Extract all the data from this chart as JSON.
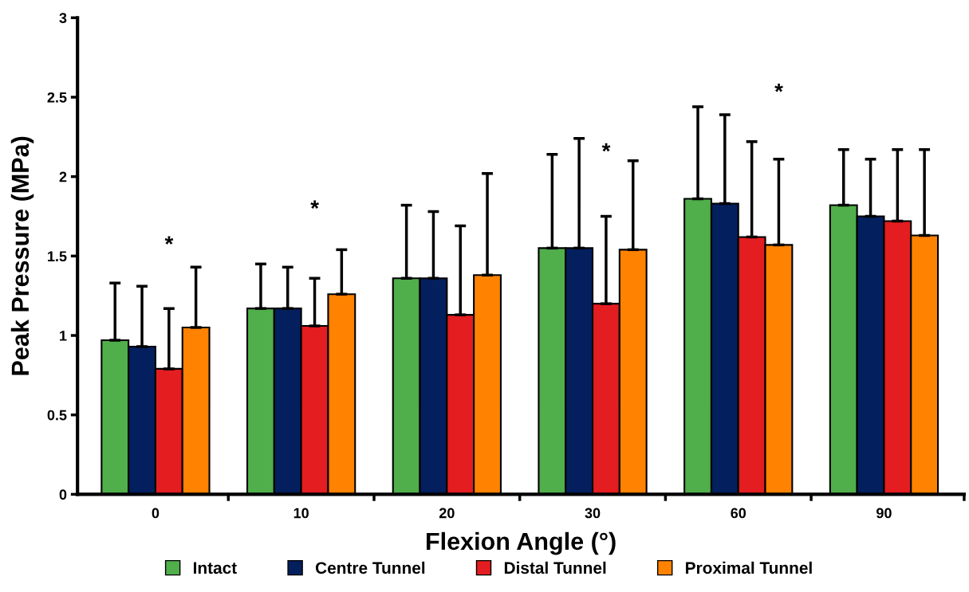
{
  "chart_data": {
    "type": "bar",
    "xlabel": "Flexion Angle (°)",
    "ylabel": "Peak Pressure (MPa)",
    "categories": [
      "0",
      "10",
      "20",
      "30",
      "60",
      "90"
    ],
    "series": [
      {
        "name": "Intact",
        "color": "#50ae4b",
        "values": [
          0.97,
          1.17,
          1.36,
          1.55,
          1.86,
          1.82
        ],
        "errors": [
          [
            0.97,
            1.33
          ],
          [
            1.17,
            1.45
          ],
          [
            1.36,
            1.82
          ],
          [
            1.55,
            2.14
          ],
          [
            1.86,
            2.44
          ],
          [
            1.82,
            2.17
          ]
        ]
      },
      {
        "name": "Centre Tunnel",
        "color": "#031f5e",
        "values": [
          0.93,
          1.17,
          1.36,
          1.55,
          1.83,
          1.75
        ],
        "errors": [
          [
            0.93,
            1.31
          ],
          [
            1.17,
            1.43
          ],
          [
            1.36,
            1.78
          ],
          [
            1.55,
            2.24
          ],
          [
            1.83,
            2.39
          ],
          [
            1.75,
            2.11
          ]
        ]
      },
      {
        "name": "Distal Tunnel",
        "color": "#e31d20",
        "values": [
          0.79,
          1.06,
          1.13,
          1.2,
          1.62,
          1.72
        ],
        "errors": [
          [
            0.79,
            1.17
          ],
          [
            1.06,
            1.36
          ],
          [
            1.13,
            1.69
          ],
          [
            1.2,
            1.75
          ],
          [
            1.62,
            2.22
          ],
          [
            1.72,
            2.17
          ]
        ]
      },
      {
        "name": "Proximal Tunnel",
        "color": "#ff8200",
        "values": [
          1.05,
          1.26,
          1.38,
          1.54,
          1.57,
          1.63
        ],
        "errors": [
          [
            1.05,
            1.43
          ],
          [
            1.26,
            1.54
          ],
          [
            1.38,
            2.02
          ],
          [
            1.54,
            2.1
          ],
          [
            1.57,
            2.11
          ],
          [
            1.63,
            2.17
          ]
        ]
      }
    ],
    "annotations": [
      "*",
      "*",
      "*",
      "*"
    ],
    "ylim": [
      0,
      3
    ],
    "yticks": [
      0,
      {
        "value": 0.5,
        "label": "0.5"
      },
      1,
      {
        "value": 1.5,
        "label": "1.5"
      },
      2,
      {
        "value": 2.5,
        "label": "2.5"
      },
      3
    ],
    "grid": false,
    "legend": "bottom",
    "marker": "square"
  }
}
